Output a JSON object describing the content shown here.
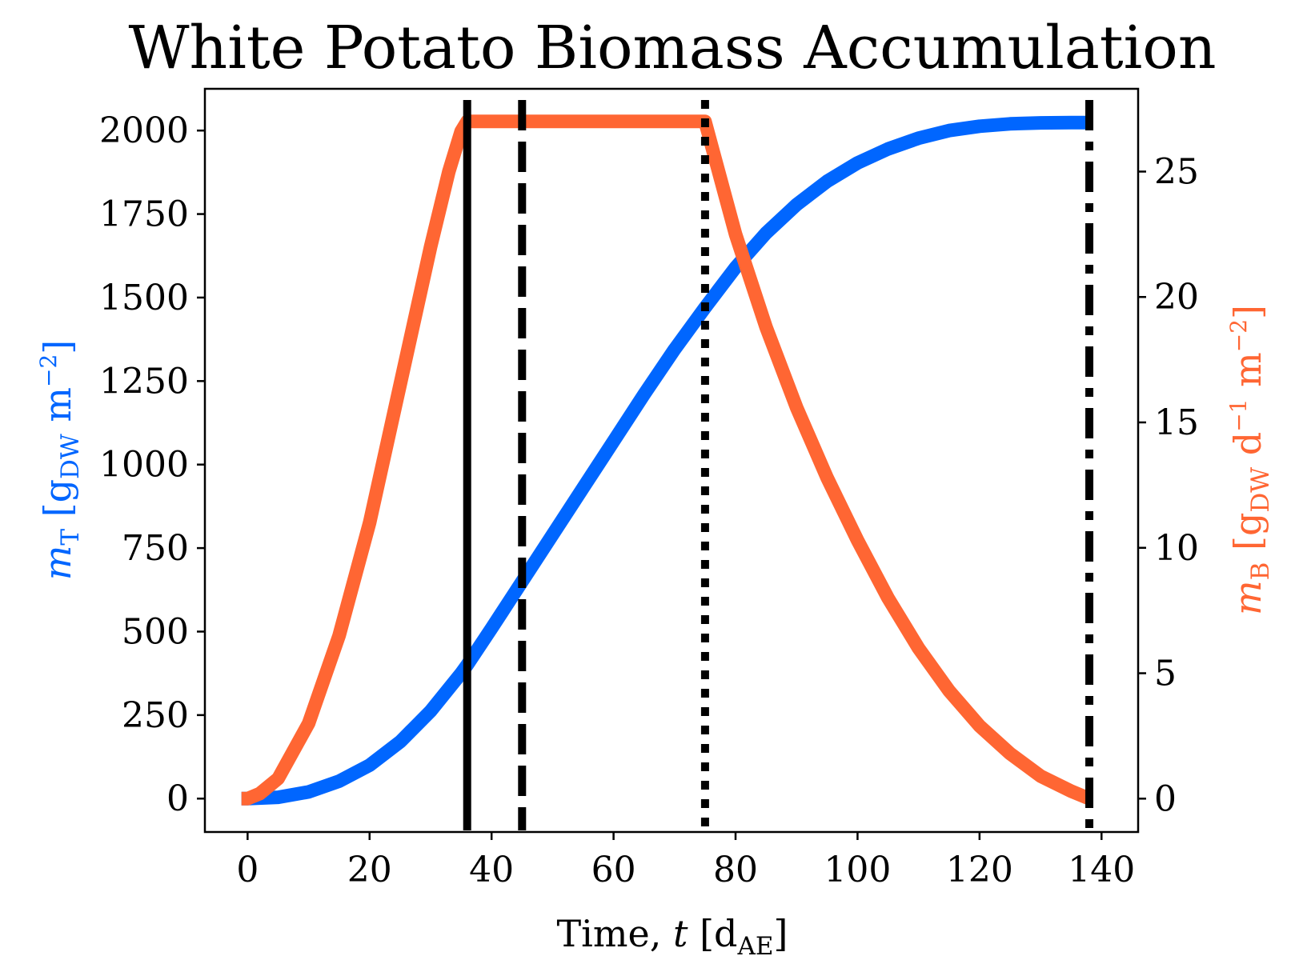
{
  "chart_data": {
    "type": "line",
    "title": "White Potato Biomass Accumulation",
    "xlabel": {
      "main": "Time, ",
      "var": "t",
      "open": " [d",
      "sub": "AE",
      "close": "]"
    },
    "ylabel_left": {
      "var": "m",
      "sub": "T",
      "open": " [g",
      "unit_sub": "DW",
      "unit": " m",
      "sup": "−2",
      "close": "]"
    },
    "ylabel_right": {
      "var": "m",
      "sub": "B",
      "open": " [g",
      "unit_sub": "DW",
      "unit": " d",
      "sup1": "−1",
      "unit2": " m",
      "sup2": "−2",
      "close": "]"
    },
    "xlim": [
      -7,
      146
    ],
    "ylim_left": [
      -100,
      2125
    ],
    "ylim_right": [
      -1.33,
      28.3
    ],
    "xticks": [
      "0",
      "20",
      "40",
      "60",
      "80",
      "100",
      "120",
      "140"
    ],
    "xtick_values": [
      0,
      20,
      40,
      60,
      80,
      100,
      120,
      140
    ],
    "yticks_left": [
      "0",
      "250",
      "500",
      "750",
      "1000",
      "1250",
      "1500",
      "1750",
      "2000"
    ],
    "ytick_left_values": [
      0,
      250,
      500,
      750,
      1000,
      1250,
      1500,
      1750,
      2000
    ],
    "yticks_right": [
      "0",
      "5",
      "10",
      "15",
      "20",
      "25"
    ],
    "ytick_right_values": [
      0,
      5,
      10,
      15,
      20,
      25
    ],
    "grid": false,
    "vertical_lines": [
      {
        "x": 36,
        "style": "solid"
      },
      {
        "x": 45,
        "style": "dashed"
      },
      {
        "x": 75,
        "style": "dotted"
      },
      {
        "x": 138,
        "style": "dashdot"
      }
    ],
    "series": [
      {
        "axis": "left",
        "color": "#0066ff",
        "x": [
          -1,
          0,
          5,
          10,
          15,
          20,
          25,
          30,
          35,
          36,
          40,
          45,
          50,
          55,
          60,
          65,
          70,
          75,
          80,
          85,
          90,
          95,
          100,
          105,
          110,
          115,
          120,
          125,
          130,
          135,
          138
        ],
        "y": [
          0,
          0,
          4,
          20,
          52,
          100,
          170,
          262,
          375,
          400,
          510,
          650,
          790,
          930,
          1070,
          1210,
          1345,
          1470,
          1590,
          1693,
          1778,
          1848,
          1903,
          1945,
          1977,
          2000,
          2013,
          2020,
          2023,
          2024,
          2024
        ]
      },
      {
        "axis": "right",
        "color": "#ff6633",
        "x": [
          -1,
          0,
          2,
          5,
          10,
          15,
          20,
          25,
          30,
          33,
          35,
          36,
          45,
          60,
          75,
          80,
          85,
          90,
          95,
          100,
          105,
          110,
          115,
          120,
          125,
          130,
          135,
          138
        ],
        "y": [
          0,
          0,
          0.2,
          0.8,
          3.0,
          6.5,
          11.0,
          16.5,
          22.0,
          25.0,
          26.6,
          27.0,
          27.0,
          27.0,
          27.0,
          22.5,
          18.8,
          15.6,
          12.8,
          10.3,
          8.0,
          6.0,
          4.3,
          2.9,
          1.8,
          0.9,
          0.3,
          0
        ]
      }
    ]
  }
}
